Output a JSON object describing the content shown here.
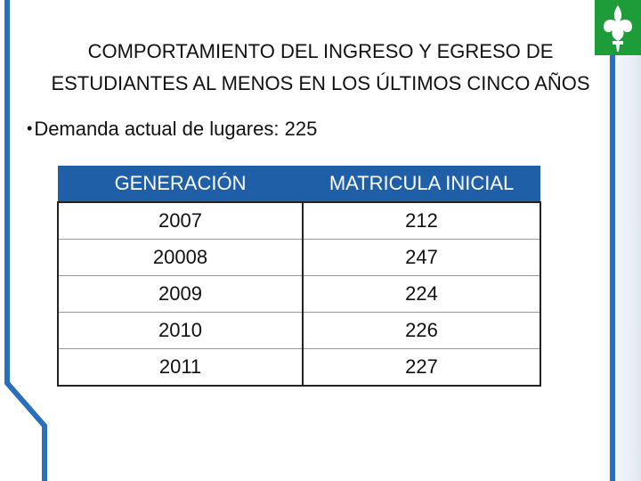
{
  "slide": {
    "title_line1": "COMPORTAMIENTO DEL INGRESO Y EGRESO DE",
    "title_line2": "ESTUDIANTES AL MENOS EN LOS ÚLTIMOS CINCO AÑOS",
    "bullet": "Demanda actual de lugares: 225"
  },
  "table": {
    "headers": [
      "GENERACIÓN",
      "MATRICULA INICIAL"
    ],
    "rows": [
      [
        "2007",
        "212"
      ],
      [
        "20008",
        "247"
      ],
      [
        "2009",
        "224"
      ],
      [
        "2010",
        "226"
      ],
      [
        "2011",
        "227"
      ]
    ]
  },
  "decor": {
    "accent_blue": "#2a6fba",
    "header_blue": "#1f5fa8",
    "emblem_green": "#1f9c3a",
    "emblem_icon": "fleur-de-lis-icon"
  }
}
